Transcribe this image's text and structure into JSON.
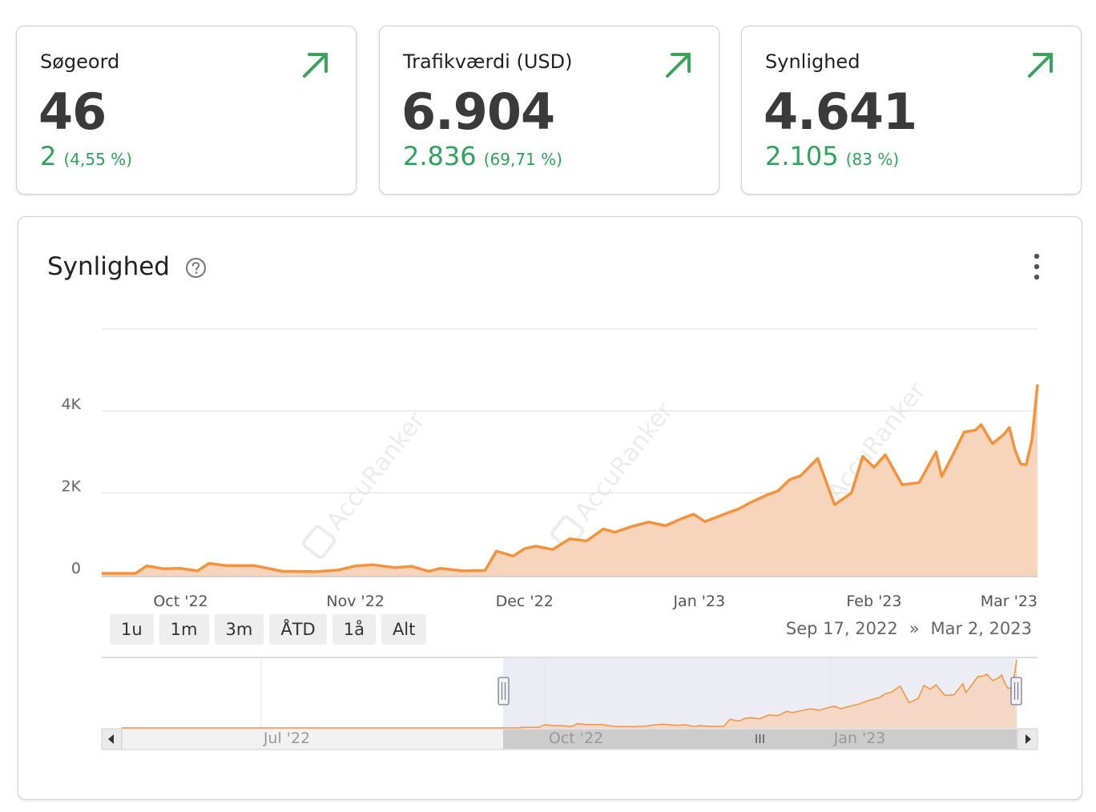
{
  "kpis": [
    {
      "title": "Søgeord",
      "value": "46",
      "change": "2",
      "change_pct": "(4,55 %)"
    },
    {
      "title": "Trafikværdi (USD)",
      "value": "6.904",
      "change": "2.836",
      "change_pct": "(69,71 %)"
    },
    {
      "title": "Synlighed",
      "value": "4.641",
      "change": "2.105",
      "change_pct": "(83 %)"
    }
  ],
  "colors": {
    "accent": "#f7923a",
    "area": "#f6d5bc",
    "positive": "#2fa35a",
    "arrow": "#3aa35c"
  },
  "icons": {
    "trend": "arrow-up-right-icon",
    "help": "question-circle-icon",
    "menu": "more-vertical-icon"
  },
  "chart": {
    "title": "Synlighed",
    "range_buttons": [
      "1u",
      "1m",
      "3m",
      "ÅTD",
      "1å",
      "Alt"
    ],
    "date_from": "Sep 17, 2022",
    "date_sep": "»",
    "date_to": "Mar 2, 2023",
    "watermark": "AccuRanker",
    "navigator_labels": [
      "Jul '22",
      "Oct '22",
      "Jan '23"
    ]
  },
  "chart_data": {
    "type": "area",
    "title": "Synlighed",
    "ylabel": "",
    "xlabel": "",
    "ylim": [
      0,
      6000
    ],
    "yticks": [
      0,
      2000,
      4000
    ],
    "ytick_labels": [
      "0",
      "2K",
      "4K"
    ],
    "xtick_labels": [
      "Oct '22",
      "Nov '22",
      "Dec '22",
      "Jan '23",
      "Feb '23",
      "Mar '23"
    ],
    "xtick_dates": [
      "2022-10-01",
      "2022-11-01",
      "2022-12-01",
      "2023-01-01",
      "2023-02-01",
      "2023-03-01"
    ],
    "x_start": "2022-09-17",
    "x_end": "2023-03-02",
    "grid": true,
    "series": [
      {
        "values": [
          [
            "2022-09-17",
            40
          ],
          [
            "2022-09-23",
            40
          ],
          [
            "2022-09-25",
            220
          ],
          [
            "2022-09-28",
            150
          ],
          [
            "2022-10-01",
            160
          ],
          [
            "2022-10-04",
            100
          ],
          [
            "2022-10-06",
            280
          ],
          [
            "2022-10-09",
            230
          ],
          [
            "2022-10-14",
            230
          ],
          [
            "2022-10-19",
            90
          ],
          [
            "2022-10-25",
            80
          ],
          [
            "2022-10-29",
            120
          ],
          [
            "2022-11-01",
            220
          ],
          [
            "2022-11-04",
            250
          ],
          [
            "2022-11-08",
            180
          ],
          [
            "2022-11-11",
            210
          ],
          [
            "2022-11-14",
            90
          ],
          [
            "2022-11-16",
            160
          ],
          [
            "2022-11-20",
            100
          ],
          [
            "2022-11-24",
            110
          ],
          [
            "2022-11-26",
            580
          ],
          [
            "2022-11-29",
            460
          ],
          [
            "2022-12-01",
            640
          ],
          [
            "2022-12-03",
            700
          ],
          [
            "2022-12-06",
            620
          ],
          [
            "2022-12-09",
            880
          ],
          [
            "2022-12-12",
            830
          ],
          [
            "2022-12-15",
            1120
          ],
          [
            "2022-12-17",
            1040
          ],
          [
            "2022-12-20",
            1180
          ],
          [
            "2022-12-23",
            1290
          ],
          [
            "2022-12-26",
            1200
          ],
          [
            "2022-12-29",
            1380
          ],
          [
            "2022-12-31",
            1480
          ],
          [
            "2023-01-02",
            1300
          ],
          [
            "2023-01-05",
            1460
          ],
          [
            "2023-01-08",
            1610
          ],
          [
            "2023-01-10",
            1760
          ],
          [
            "2023-01-13",
            1950
          ],
          [
            "2023-01-15",
            2050
          ],
          [
            "2023-01-17",
            2320
          ],
          [
            "2023-01-19",
            2420
          ],
          [
            "2023-01-22",
            2840
          ],
          [
            "2023-01-25",
            1710
          ],
          [
            "2023-01-28",
            2000
          ],
          [
            "2023-01-30",
            2890
          ],
          [
            "2023-02-01",
            2620
          ],
          [
            "2023-02-03",
            2930
          ],
          [
            "2023-02-06",
            2200
          ],
          [
            "2023-02-09",
            2250
          ],
          [
            "2023-02-12",
            3000
          ],
          [
            "2023-02-13",
            2400
          ],
          [
            "2023-02-15",
            2930
          ],
          [
            "2023-02-17",
            3480
          ],
          [
            "2023-02-19",
            3530
          ],
          [
            "2023-02-20",
            3660
          ],
          [
            "2023-02-22",
            3200
          ],
          [
            "2023-02-24",
            3420
          ],
          [
            "2023-02-25",
            3590
          ],
          [
            "2023-02-26",
            3050
          ],
          [
            "2023-02-27",
            2700
          ],
          [
            "2023-02-28",
            2690
          ],
          [
            "2023-03-01",
            3290
          ],
          [
            "2023-03-02",
            4641
          ]
        ]
      }
    ]
  }
}
